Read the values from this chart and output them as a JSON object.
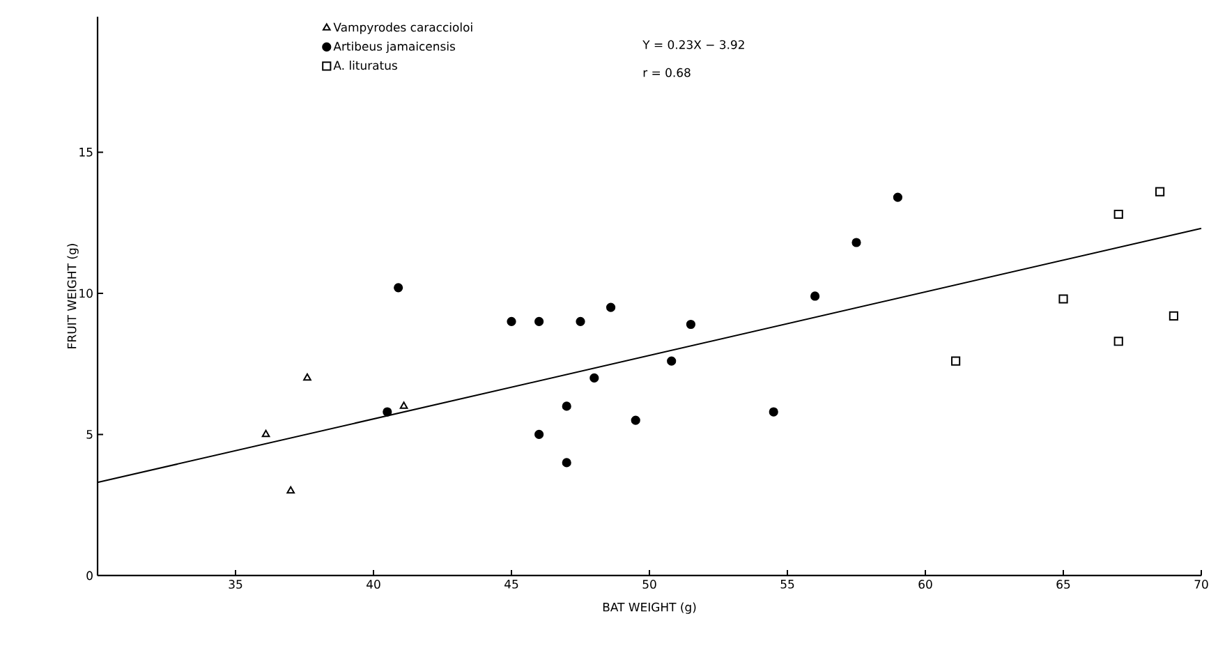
{
  "chart_data": {
    "type": "scatter",
    "xlabel": "BAT WEIGHT (g)",
    "ylabel": "FRUIT WEIGHT (g)",
    "xlim": [
      30,
      70
    ],
    "ylim": [
      0,
      19.8
    ],
    "xticks": [
      35,
      40,
      45,
      50,
      55,
      60,
      65,
      70
    ],
    "yticks": [
      0,
      5,
      10,
      15
    ],
    "grid": false,
    "legend": "top left",
    "annotations": [
      "Y = 0.23X − 3.92",
      "r = 0.68"
    ],
    "series": [
      {
        "name": "Vampyrodes caraccioloi",
        "color": "#000000",
        "marker": "triangle",
        "x": [
          36.1,
          37,
          37.6,
          41.1
        ],
        "values": [
          5,
          3,
          7,
          6
        ]
      },
      {
        "name": "Artibeus jamaicensis",
        "color": "#000000",
        "marker": "circle",
        "x": [
          40.5,
          40.9,
          45,
          46,
          46,
          47,
          47,
          47.5,
          48,
          48.6,
          49.5,
          50.8,
          51.5,
          54.5,
          56,
          57.5,
          59
        ],
        "values": [
          5.8,
          10.2,
          9,
          9,
          5,
          6,
          4,
          9,
          7,
          9.5,
          5.5,
          7.6,
          8.9,
          5.8,
          9.9,
          11.8,
          13.4
        ]
      },
      {
        "name": "A. lituratus",
        "color": "#000000",
        "marker": "square",
        "x": [
          61.1,
          65,
          67,
          67,
          68.5,
          69
        ],
        "values": [
          7.6,
          9.8,
          8.3,
          12.8,
          13.6,
          9.2
        ]
      },
      {
        "type": "line",
        "color": "#000000",
        "x": [
          30,
          70
        ],
        "values": [
          3.3,
          12.3
        ]
      }
    ]
  }
}
